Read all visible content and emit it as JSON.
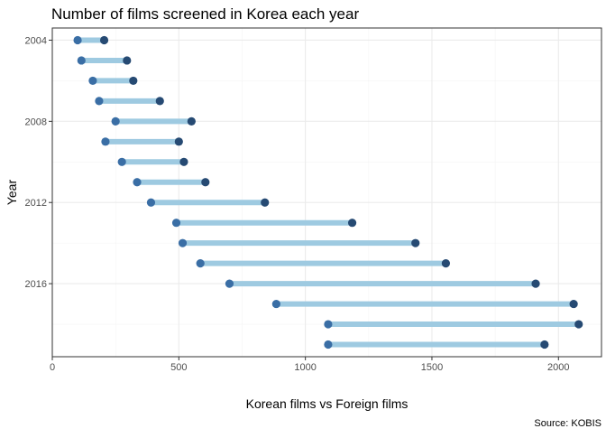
{
  "chart_data": {
    "type": "dumbbell",
    "title": "Number of films screened in Korea each year",
    "xlabel": "Korean films vs Foreign films",
    "ylabel": "Year",
    "caption": "Source: KOBIS",
    "xlim": [
      0,
      2170
    ],
    "ylim": [
      2003.4,
      2019.6
    ],
    "x_ticks": [
      0,
      500,
      1000,
      1500,
      2000
    ],
    "y_ticks": [
      2004,
      2008,
      2012,
      2016
    ],
    "grid": true,
    "colors": {
      "segment": "#9ecae1",
      "korean_point": "#3a6ea5",
      "foreign_point": "#264a73",
      "grid_major": "#ebebeb",
      "grid_minor": "#f4f4f4",
      "border": "#333333",
      "text": "#000000",
      "tick_text": "#4d4d4d"
    },
    "series": [
      {
        "key": "korean",
        "values": [
          100,
          115,
          160,
          185,
          250,
          210,
          275,
          335,
          390,
          490,
          515,
          585,
          700,
          885,
          1090,
          1090
        ]
      },
      {
        "key": "foreign",
        "values": [
          205,
          295,
          320,
          425,
          550,
          500,
          520,
          605,
          840,
          1185,
          1435,
          1555,
          1910,
          2060,
          2080,
          1945
        ]
      }
    ],
    "years": [
      2004,
      2005,
      2006,
      2007,
      2008,
      2009,
      2010,
      2011,
      2012,
      2013,
      2014,
      2015,
      2016,
      2017,
      2018,
      2019
    ]
  }
}
